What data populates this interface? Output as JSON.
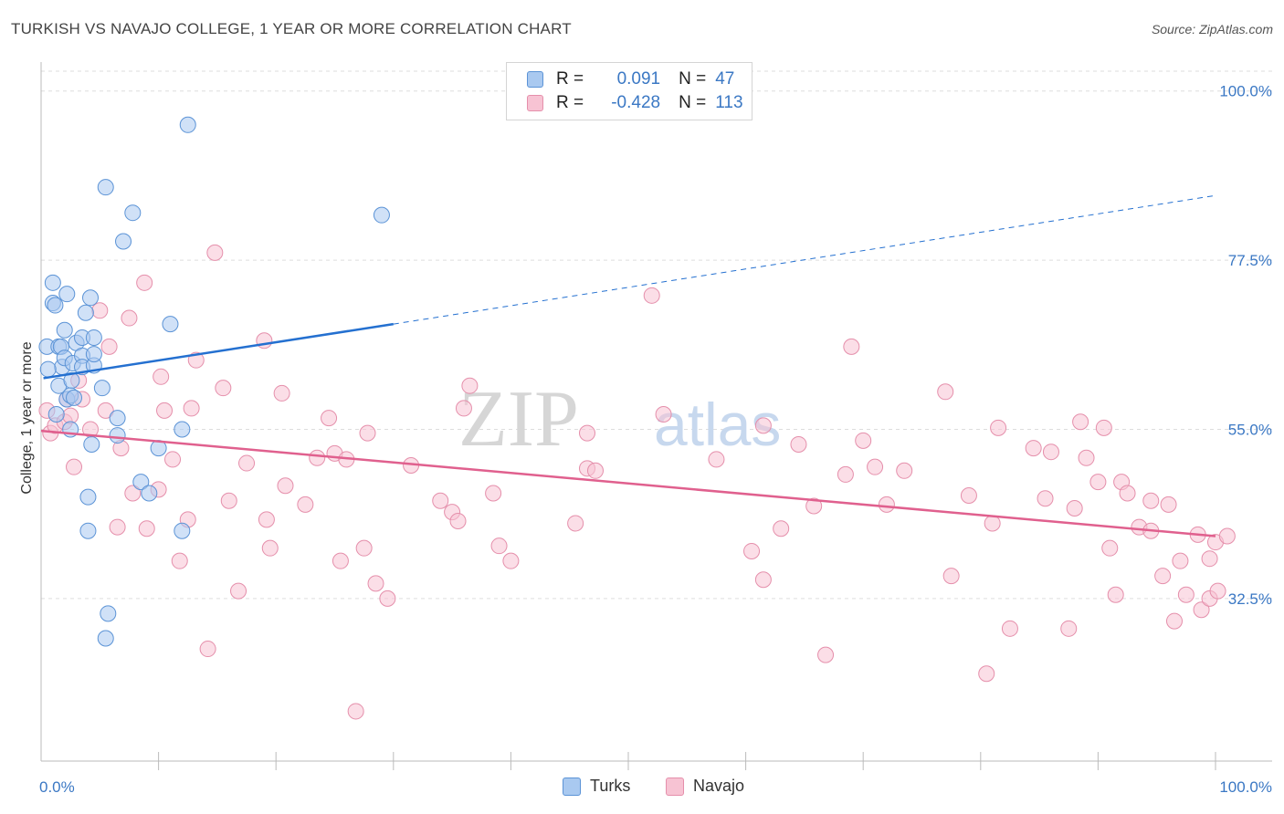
{
  "title": "TURKISH VS NAVAJO COLLEGE, 1 YEAR OR MORE CORRELATION CHART",
  "source": "Source: ZipAtlas.com",
  "watermark": {
    "zip": "ZIP",
    "atlas": "atlas"
  },
  "legend": {
    "r_label": "R =",
    "n_label": "N =",
    "turks": {
      "r": "0.091",
      "n": "47"
    },
    "navajo": {
      "r": "-0.428",
      "n": "113"
    }
  },
  "colors": {
    "turks_fill": "#a9c9f0",
    "turks_stroke": "#5b93d6",
    "turks_line": "#2470d0",
    "navajo_fill": "#f7c3d3",
    "navajo_stroke": "#e58fab",
    "navajo_line": "#e0608e",
    "axis_text": "#3b78c4",
    "grid": "#dddddd"
  },
  "chart_data": {
    "type": "scatter",
    "title": "TURKISH VS NAVAJO COLLEGE, 1 YEAR OR MORE CORRELATION CHART",
    "xlabel": "",
    "ylabel": "College, 1 year or more",
    "xlim": [
      0,
      100
    ],
    "ylim": [
      11,
      103
    ],
    "x_tick_labels": [
      "0.0%",
      "100.0%"
    ],
    "y_ticks": [
      {
        "value": 32.5,
        "label": "32.5%"
      },
      {
        "value": 55.0,
        "label": "55.0%"
      },
      {
        "value": 77.5,
        "label": "77.5%"
      },
      {
        "value": 100.0,
        "label": "100.0%"
      }
    ],
    "grid": true,
    "legend_position": "bottom-center",
    "series": [
      {
        "name": "Turks",
        "r": 0.091,
        "n": 47,
        "trend": {
          "x_start": 0.2,
          "y_start": 61.8,
          "x_solid_end": 30,
          "y_solid_end": 69.0,
          "x_end": 100,
          "y_end": 86.1
        },
        "points": [
          [
            0.5,
            66.0
          ],
          [
            1.0,
            71.8
          ],
          [
            1.0,
            74.5
          ],
          [
            1.2,
            71.5
          ],
          [
            1.5,
            66.0
          ],
          [
            1.7,
            66.0
          ],
          [
            1.5,
            60.8
          ],
          [
            1.8,
            63.3
          ],
          [
            2.0,
            68.2
          ],
          [
            2.2,
            59.0
          ],
          [
            2.0,
            64.5
          ],
          [
            2.2,
            73.0
          ],
          [
            2.5,
            59.5
          ],
          [
            2.5,
            55.0
          ],
          [
            2.7,
            63.8
          ],
          [
            2.8,
            59.2
          ],
          [
            3.0,
            66.5
          ],
          [
            3.5,
            64.8
          ],
          [
            3.5,
            63.3
          ],
          [
            3.5,
            67.2
          ],
          [
            3.8,
            70.5
          ],
          [
            4.0,
            46.0
          ],
          [
            4.0,
            41.5
          ],
          [
            4.2,
            72.5
          ],
          [
            4.3,
            53.0
          ],
          [
            4.5,
            63.5
          ],
          [
            4.5,
            65.0
          ],
          [
            4.5,
            67.2
          ],
          [
            5.2,
            60.5
          ],
          [
            5.5,
            87.2
          ],
          [
            5.7,
            30.5
          ],
          [
            5.5,
            27.2
          ],
          [
            6.5,
            56.5
          ],
          [
            6.5,
            54.2
          ],
          [
            7.0,
            80.0
          ],
          [
            7.8,
            83.8
          ],
          [
            8.5,
            48.0
          ],
          [
            9.2,
            46.5
          ],
          [
            10.0,
            52.5
          ],
          [
            11.0,
            69.0
          ],
          [
            12.0,
            41.5
          ],
          [
            12.0,
            55.0
          ],
          [
            12.5,
            95.5
          ],
          [
            29.0,
            83.5
          ],
          [
            0.6,
            63.0
          ],
          [
            1.3,
            57.0
          ],
          [
            2.6,
            61.5
          ]
        ]
      },
      {
        "name": "Navajo",
        "r": -0.428,
        "n": 113,
        "trend": {
          "x_start": 0,
          "y_start": 54.8,
          "x_end": 100,
          "y_end": 40.8
        },
        "points": [
          [
            0.5,
            57.5
          ],
          [
            0.8,
            54.5
          ],
          [
            1.2,
            55.5
          ],
          [
            2.0,
            56.0
          ],
          [
            2.2,
            59.0
          ],
          [
            2.5,
            56.8
          ],
          [
            2.8,
            50.0
          ],
          [
            3.2,
            61.5
          ],
          [
            3.5,
            59.0
          ],
          [
            4.2,
            55.0
          ],
          [
            5.0,
            70.8
          ],
          [
            5.5,
            57.5
          ],
          [
            5.8,
            66.0
          ],
          [
            6.5,
            42.0
          ],
          [
            6.8,
            52.5
          ],
          [
            7.5,
            69.8
          ],
          [
            7.8,
            46.5
          ],
          [
            8.8,
            74.5
          ],
          [
            9.0,
            41.8
          ],
          [
            10.0,
            47.0
          ],
          [
            10.2,
            62.0
          ],
          [
            10.5,
            57.5
          ],
          [
            11.2,
            51.0
          ],
          [
            11.8,
            37.5
          ],
          [
            12.5,
            43.0
          ],
          [
            12.8,
            57.8
          ],
          [
            13.2,
            64.2
          ],
          [
            14.2,
            25.8
          ],
          [
            14.8,
            78.5
          ],
          [
            15.5,
            60.5
          ],
          [
            16.0,
            45.5
          ],
          [
            16.8,
            33.5
          ],
          [
            17.5,
            50.5
          ],
          [
            19.0,
            66.8
          ],
          [
            19.2,
            43.0
          ],
          [
            19.5,
            39.2
          ],
          [
            20.5,
            59.8
          ],
          [
            20.8,
            47.5
          ],
          [
            22.5,
            45.0
          ],
          [
            23.5,
            51.2
          ],
          [
            24.5,
            56.5
          ],
          [
            25.0,
            51.8
          ],
          [
            25.5,
            37.5
          ],
          [
            26.0,
            51.0
          ],
          [
            26.8,
            17.5
          ],
          [
            27.5,
            39.2
          ],
          [
            27.8,
            54.5
          ],
          [
            28.5,
            34.5
          ],
          [
            29.5,
            32.5
          ],
          [
            31.5,
            50.2
          ],
          [
            34.0,
            45.5
          ],
          [
            35.0,
            44.0
          ],
          [
            35.5,
            42.8
          ],
          [
            36.0,
            57.8
          ],
          [
            36.5,
            60.8
          ],
          [
            38.5,
            46.5
          ],
          [
            39.0,
            39.5
          ],
          [
            40.0,
            37.5
          ],
          [
            45.5,
            42.5
          ],
          [
            46.5,
            54.5
          ],
          [
            46.5,
            49.8
          ],
          [
            47.2,
            49.5
          ],
          [
            52.0,
            72.8
          ],
          [
            53.0,
            57.0
          ],
          [
            57.5,
            51.0
          ],
          [
            60.5,
            38.8
          ],
          [
            61.5,
            35.0
          ],
          [
            61.5,
            55.5
          ],
          [
            63.0,
            41.8
          ],
          [
            64.5,
            53.0
          ],
          [
            65.8,
            44.8
          ],
          [
            66.8,
            25.0
          ],
          [
            68.5,
            49.0
          ],
          [
            69.0,
            66.0
          ],
          [
            70.0,
            53.5
          ],
          [
            71.0,
            50.0
          ],
          [
            72.0,
            45.0
          ],
          [
            73.5,
            49.5
          ],
          [
            77.0,
            60.0
          ],
          [
            77.5,
            35.5
          ],
          [
            79.0,
            46.2
          ],
          [
            80.5,
            22.5
          ],
          [
            81.0,
            42.5
          ],
          [
            81.5,
            55.2
          ],
          [
            82.5,
            28.5
          ],
          [
            84.5,
            52.5
          ],
          [
            85.5,
            45.8
          ],
          [
            86.0,
            52.0
          ],
          [
            87.5,
            28.5
          ],
          [
            88.0,
            44.5
          ],
          [
            88.5,
            56.0
          ],
          [
            89.0,
            51.2
          ],
          [
            90.0,
            48.0
          ],
          [
            90.5,
            55.2
          ],
          [
            91.0,
            39.2
          ],
          [
            91.5,
            33.0
          ],
          [
            92.0,
            48.0
          ],
          [
            92.5,
            46.5
          ],
          [
            93.5,
            42.0
          ],
          [
            94.5,
            45.5
          ],
          [
            94.5,
            41.5
          ],
          [
            95.5,
            35.5
          ],
          [
            96.0,
            45.0
          ],
          [
            96.5,
            29.5
          ],
          [
            97.0,
            37.5
          ],
          [
            97.5,
            33.0
          ],
          [
            98.5,
            41.0
          ],
          [
            98.8,
            31.0
          ],
          [
            99.5,
            32.5
          ],
          [
            99.5,
            37.8
          ],
          [
            100.0,
            40.0
          ],
          [
            100.2,
            33.5
          ],
          [
            101.0,
            40.8
          ]
        ]
      }
    ]
  },
  "bottom_legend": {
    "turks": "Turks",
    "navajo": "Navajo"
  }
}
